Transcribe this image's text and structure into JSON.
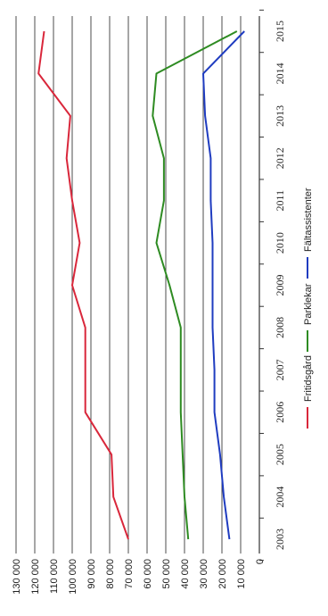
{
  "chart_data": {
    "type": "line",
    "title": "",
    "xlabel": "",
    "ylabel": "",
    "x": [
      "2003",
      "2004",
      "2005",
      "2006",
      "2007",
      "2008",
      "2009",
      "2010",
      "2011",
      "2012",
      "2013",
      "2014",
      "2015"
    ],
    "y_ticks": [
      "0",
      "10 000",
      "20 000",
      "30 000",
      "40 000",
      "50 000",
      "60 000",
      "70 000",
      "80 000",
      "90 000",
      "100 000",
      "110 000",
      "120 000",
      "130 000"
    ],
    "ylim": [
      0,
      130000
    ],
    "grid": true,
    "legend_position": "bottom",
    "series": [
      {
        "name": "Fritidsgård",
        "color": "#d9273b",
        "values": [
          70000,
          78000,
          79000,
          93000,
          93000,
          93000,
          100000,
          96000,
          100000,
          103000,
          101000,
          118000,
          115000
        ]
      },
      {
        "name": "Parklekar",
        "color": "#2e8b22",
        "values": [
          38000,
          40000,
          41000,
          42000,
          42000,
          42000,
          48000,
          55000,
          51000,
          51000,
          57000,
          55000,
          12000
        ]
      },
      {
        "name": "Fältassistenter",
        "color": "#1f3cc0",
        "values": [
          16000,
          19000,
          21000,
          24000,
          24000,
          25000,
          25000,
          25000,
          26000,
          26000,
          29000,
          30000,
          8000
        ]
      }
    ]
  }
}
